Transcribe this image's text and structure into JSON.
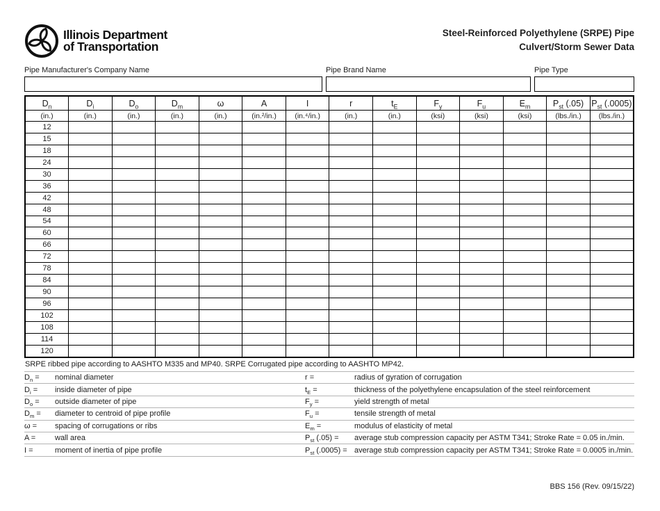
{
  "logo": {
    "line1": "Illinois Department",
    "line2": "of Transportation"
  },
  "title": {
    "line1": "Steel-Reinforced Polyethylene (SRPE) Pipe",
    "line2": "Culvert/Storm Sewer Data"
  },
  "fields": [
    {
      "label": "Pipe Manufacturer's Company Name",
      "value": ""
    },
    {
      "label": "Pipe Brand Name",
      "value": ""
    },
    {
      "label": "Pipe Type",
      "value": ""
    }
  ],
  "table": {
    "columns": [
      {
        "b": "D",
        "s": "n",
        "x": "",
        "u": "(in.)"
      },
      {
        "b": "D",
        "s": "i",
        "x": "",
        "u": "(in.)"
      },
      {
        "b": "D",
        "s": "o",
        "x": "",
        "u": "(in.)"
      },
      {
        "b": "D",
        "s": "m",
        "x": "",
        "u": "(in.)"
      },
      {
        "b": "ω",
        "s": "",
        "x": "",
        "u": "(in.)"
      },
      {
        "b": "A",
        "s": "",
        "x": "",
        "u": "(in.²/in.)"
      },
      {
        "b": "I",
        "s": "",
        "x": "",
        "u": "(in.⁴/in.)"
      },
      {
        "b": "r",
        "s": "",
        "x": "",
        "u": "(in.)"
      },
      {
        "b": "t",
        "s": "E",
        "x": "",
        "u": "(in.)"
      },
      {
        "b": "F",
        "s": "y",
        "x": "",
        "u": "(ksi)"
      },
      {
        "b": "F",
        "s": "u",
        "x": "",
        "u": "(ksi)"
      },
      {
        "b": "E",
        "s": "m",
        "x": "",
        "u": "(ksi)"
      },
      {
        "b": "P",
        "s": "st",
        "x": " (.05)",
        "u": "(lbs./in.)"
      },
      {
        "b": "P",
        "s": "st",
        "x": " (.0005)",
        "u": "(lbs./in.)"
      }
    ],
    "diameters": [
      "12",
      "15",
      "18",
      "24",
      "30",
      "36",
      "42",
      "48",
      "54",
      "60",
      "66",
      "72",
      "78",
      "84",
      "90",
      "96",
      "102",
      "108",
      "114",
      "120"
    ]
  },
  "note": "SRPE ribbed pipe according to AASHTO M335 and MP40. SRPE Corrugated pipe according to AASHTO MP42.",
  "definitions": [
    {
      "lb": "D",
      "ls": "n",
      "lx": "",
      "ld": "nominal diameter",
      "rb": "r",
      "rs": "",
      "rx": "",
      "rd": "radius of gyration of corrugation"
    },
    {
      "lb": "D",
      "ls": "i",
      "lx": "",
      "ld": "inside diameter of pipe",
      "rb": "t",
      "rs": "E",
      "rx": "",
      "rd": "thickness of the polyethylene encapsulation of the steel reinforcement"
    },
    {
      "lb": "D",
      "ls": "o",
      "lx": "",
      "ld": "outside diameter of pipe",
      "rb": "F",
      "rs": "y",
      "rx": "",
      "rd": "yield strength of metal"
    },
    {
      "lb": "D",
      "ls": "m",
      "lx": "",
      "ld": "diameter to centroid of pipe profile",
      "rb": "F",
      "rs": "u",
      "rx": "",
      "rd": "tensile strength of metal"
    },
    {
      "lb": "ω",
      "ls": "",
      "lx": "",
      "ld": "spacing of corrugations or ribs",
      "rb": "E",
      "rs": "m",
      "rx": "",
      "rd": "modulus of elasticity of metal"
    },
    {
      "lb": "A",
      "ls": "",
      "lx": "",
      "ld": "wall area",
      "rb": "P",
      "rs": "st",
      "rx": " (.05)",
      "rd": "average stub compression capacity per ASTM T341; Stroke Rate = 0.05 in./min."
    },
    {
      "lb": "I",
      "ls": "",
      "lx": "",
      "ld": "moment of inertia of pipe profile",
      "rb": "P",
      "rs": "st",
      "rx": " (.0005)",
      "rd": "average stub compression capacity per ASTM T341; Stroke Rate = 0.0005 in./min."
    }
  ],
  "footer": "BBS 156 (Rev. 09/15/22)"
}
